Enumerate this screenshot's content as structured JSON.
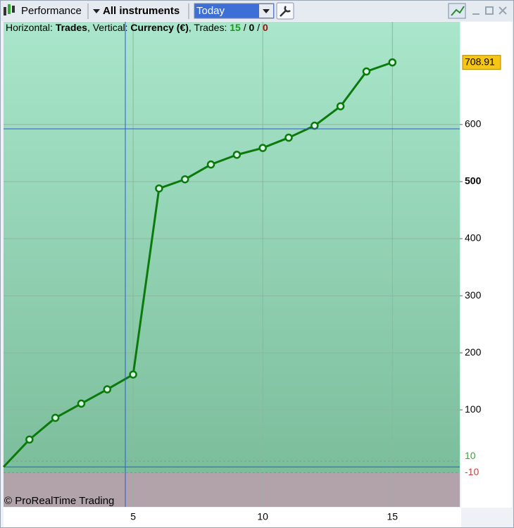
{
  "toolbar": {
    "title": "Performance",
    "instruments": "All instruments",
    "period": "Today"
  },
  "info": {
    "horizontal_label": "Horizontal: ",
    "horizontal_value": "Trades",
    "vertical_label": ", Vertical: ",
    "vertical_value": "Currency (€)",
    "trades_label": ", Trades: ",
    "separator": " / ",
    "winning": 15,
    "neutral": 0,
    "losing": 0
  },
  "watermark": "© ProRealTime Trading",
  "chart_data": {
    "type": "line",
    "color": "#0a7a0a",
    "x": [
      0,
      1,
      2,
      3,
      4,
      5,
      6,
      7,
      8,
      9,
      10,
      11,
      12,
      13,
      14,
      15
    ],
    "values": [
      0,
      48,
      86,
      111,
      136,
      162,
      488,
      504,
      530,
      547,
      559,
      577,
      598,
      632,
      693,
      708.91
    ],
    "xlim": [
      0,
      17.6
    ],
    "ylim": [
      -70,
      780
    ],
    "xticks": [
      5,
      10,
      15
    ],
    "yticks": [
      100,
      200,
      300,
      400,
      500,
      600
    ],
    "upper_band": 10,
    "lower_band": -10,
    "grid": true
  }
}
